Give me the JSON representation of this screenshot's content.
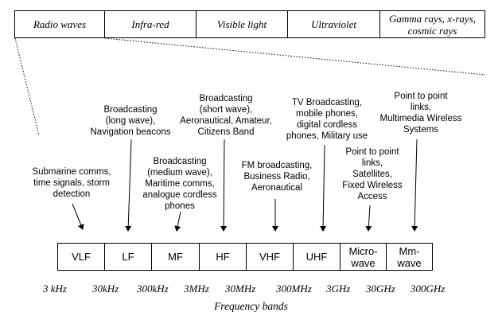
{
  "spectrum": {
    "cells": [
      "Radio waves",
      "Infra-red",
      "Visible light",
      "Ultraviolet",
      "Gamma rays, x-rays, cosmic rays"
    ]
  },
  "bands": [
    "VLF",
    "LF",
    "MF",
    "HF",
    "VHF",
    "UHF",
    "Micro-\nwave",
    "Mm-\nwave"
  ],
  "annotations": [
    "Submarine comms,\ntime signals, storm\ndetection",
    "Broadcasting\n(long wave),\nNavigation beacons",
    "Broadcasting\n(medium wave),\nMaritime comms,\nanalogue cordless\nphones",
    "Broadcasting\n(short wave),\nAeronautical, Amateur,\nCitizens Band",
    "FM broadcasting,\nBusiness Radio,\nAeronautical",
    "TV Broadcasting,\nmobile phones,\ndigital cordless\nphones, Military use",
    "Point to point\nlinks,\nSatellites,\nFixed Wireless\nAccess",
    "Point to point\nlinks,\nMultimedia Wireless\nSystems"
  ],
  "frequencies": [
    "3 kHz",
    "30kHz",
    "300kHz",
    "3MHz",
    "30MHz",
    "300MHz",
    "3GHz",
    "30GHz",
    "300GHz"
  ],
  "axis_title": "Frequency bands"
}
